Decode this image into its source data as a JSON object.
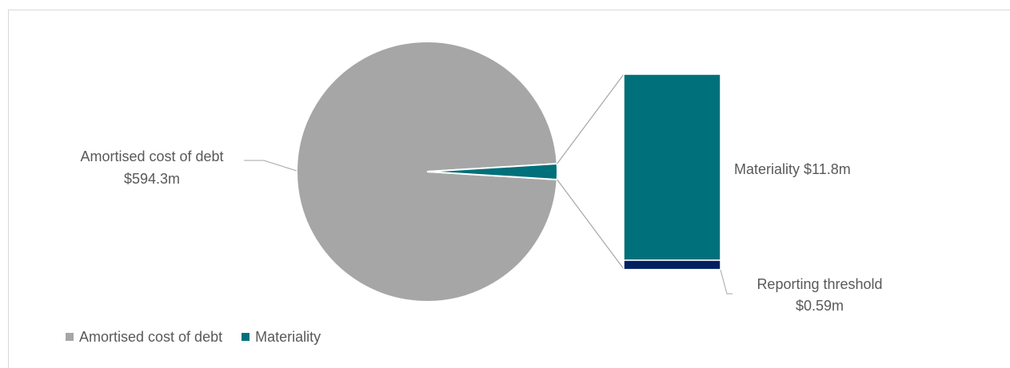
{
  "chart_data": {
    "type": "pie",
    "subtype": "bar-of-pie",
    "slices": [
      {
        "name": "Amortised cost of debt",
        "value": 594.3,
        "unit": "$m",
        "color": "#a6a6a6"
      },
      {
        "name": "Materiality",
        "value": 11.8,
        "unit": "$m",
        "color": "#00707a"
      }
    ],
    "breakout": [
      {
        "name": "Materiality",
        "value": 11.8,
        "color": "#00707a"
      },
      {
        "name": "Reporting threshold",
        "value": 0.59,
        "color": "#002060"
      }
    ],
    "labels": {
      "amortised_name": "Amortised cost of debt",
      "amortised_value": "$594.3m",
      "materiality": "Materiality $11.8m",
      "threshold_name": "Reporting threshold",
      "threshold_value": "$0.59m"
    },
    "legend": {
      "position": "bottom-left",
      "items": [
        {
          "label": "Amortised cost of debt",
          "color": "#a6a6a6"
        },
        {
          "label": "Materiality",
          "color": "#00707a"
        }
      ]
    },
    "connector_color": "#a6a6a6"
  }
}
